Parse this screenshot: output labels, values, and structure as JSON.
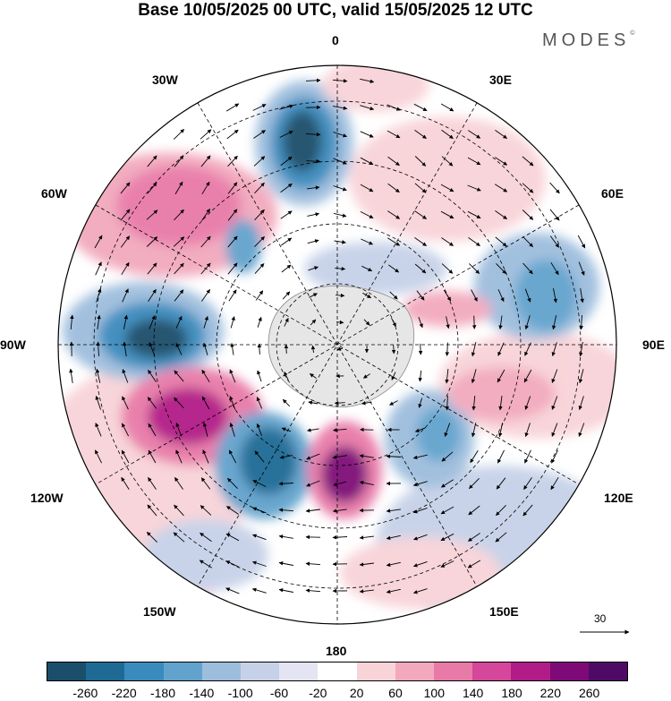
{
  "title": "Base 10/05/2025 00 UTC, valid 15/05/2025 12 UTC",
  "brand": "MODES",
  "brand_mark": "©",
  "meridian_labels": {
    "m0": "0",
    "m30e": "30E",
    "m60e": "60E",
    "m90e": "90E",
    "m120e": "120E",
    "m150e": "150E",
    "m180": "180",
    "m150w": "150W",
    "m120w": "120W",
    "m90w": "90W",
    "m60w": "60W",
    "m30w": "30W"
  },
  "reference_vector": {
    "label": "30"
  },
  "colorbar": {
    "ticks": [
      "-260",
      "-220",
      "-180",
      "-140",
      "-100",
      "-60",
      "-20",
      "20",
      "60",
      "100",
      "140",
      "180",
      "220",
      "260"
    ],
    "colors": [
      "#1b4e6b",
      "#1f6a95",
      "#3a8bbd",
      "#62a3cd",
      "#9dbddd",
      "#c6d1e8",
      "#e4e4f2",
      "#ffffff",
      "#f8d3d8",
      "#f2a9bd",
      "#e87aa8",
      "#d5479a",
      "#b21c86",
      "#7e0a78",
      "#4f0a66"
    ]
  },
  "icons": {
    "reference_arrow": "right-arrow-icon"
  }
}
